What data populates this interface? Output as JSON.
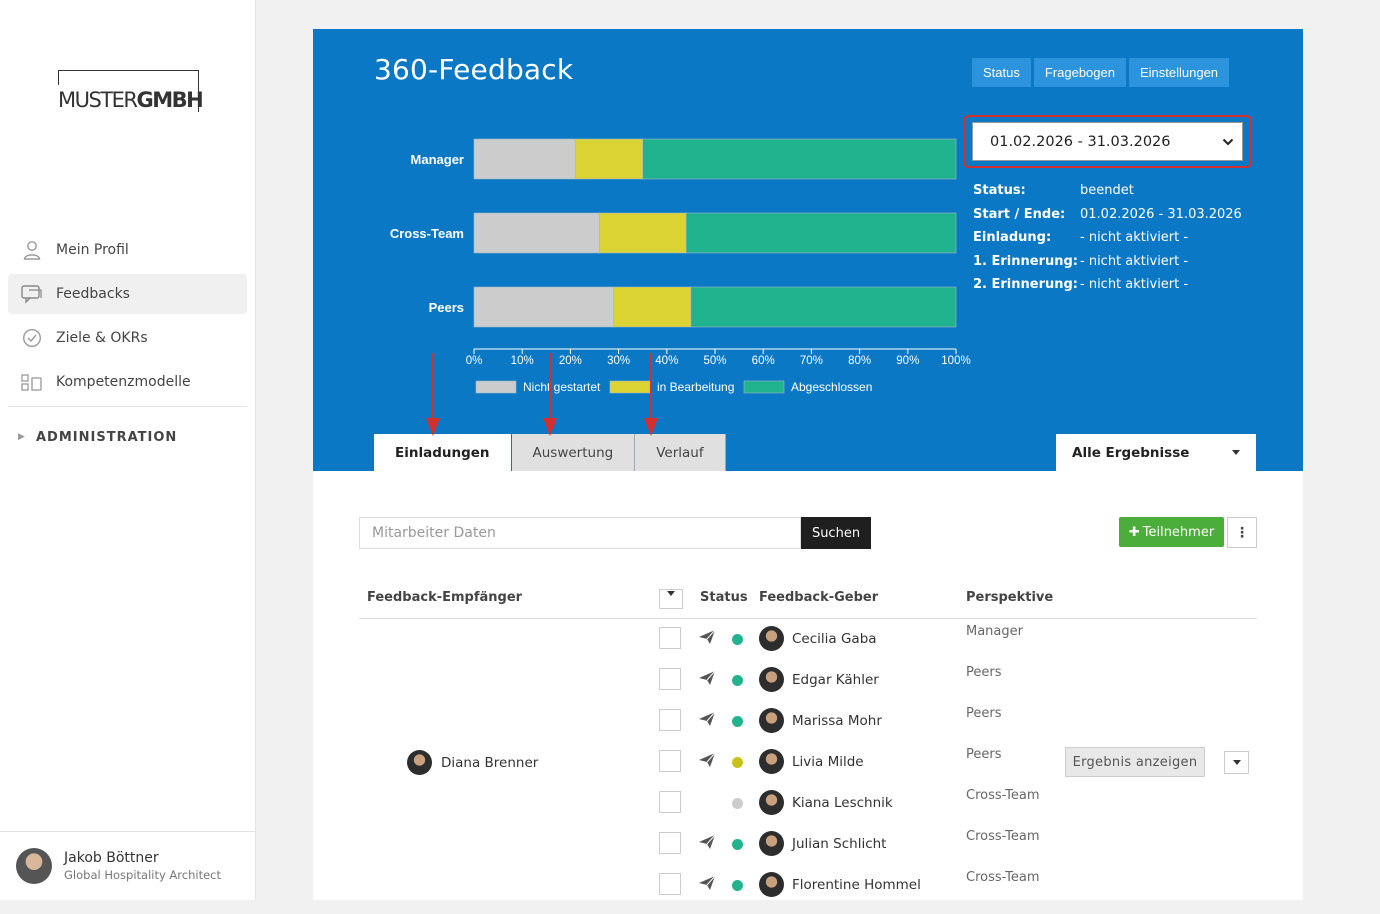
{
  "sidebar": {
    "logo": {
      "part1": "MUSTER",
      "part2": "GMBH"
    },
    "items": [
      {
        "label": "Mein Profil",
        "icon": "user-icon"
      },
      {
        "label": "Feedbacks",
        "icon": "chat-icon",
        "active": true
      },
      {
        "label": "Ziele & OKRs",
        "icon": "check-circle-icon"
      },
      {
        "label": "Kompetenzmodelle",
        "icon": "blocks-icon"
      }
    ],
    "admin_label": "ADMINISTRATION",
    "user": {
      "name": "Jakob Böttner",
      "role": "Global Hospitality Architect"
    }
  },
  "header": {
    "title": "360-Feedback",
    "buttons": [
      "Status",
      "Fragebogen",
      "Einstellungen"
    ],
    "period": "01.02.2026 - 31.03.2026",
    "info": [
      {
        "key": "Status:",
        "value": "beendet"
      },
      {
        "key": "Start / Ende:",
        "value": "01.02.2026 - 31.03.2026"
      },
      {
        "key": "Einladung:",
        "value": "- nicht aktiviert -"
      },
      {
        "key": "1. Erinnerung:",
        "value": "- nicht aktiviert -"
      },
      {
        "key": "2. Erinnerung:",
        "value": "- nicht aktiviert -"
      }
    ]
  },
  "chart_data": {
    "type": "bar",
    "orientation": "horizontal",
    "stacked": true,
    "categories": [
      "Manager",
      "Cross-Team",
      "Peers"
    ],
    "series": [
      {
        "name": "Nicht gestartet",
        "color": "#cccccc",
        "values": [
          21,
          26,
          29
        ]
      },
      {
        "name": "in Bearbeitung",
        "color": "#dcd335",
        "values": [
          14,
          18,
          16
        ]
      },
      {
        "name": "Abgeschlossen",
        "color": "#20b38d",
        "values": [
          65,
          56,
          55
        ]
      }
    ],
    "xlim": [
      0,
      100
    ],
    "x_ticks": [
      "0%",
      "10%",
      "20%",
      "30%",
      "40%",
      "50%",
      "60%",
      "70%",
      "80%",
      "90%",
      "100%"
    ],
    "legend_position": "bottom"
  },
  "tabs": [
    {
      "label": "Einladungen",
      "active": true
    },
    {
      "label": "Auswertung"
    },
    {
      "label": "Verlauf"
    }
  ],
  "filter": {
    "label": "Alle Ergebnisse"
  },
  "search": {
    "placeholder": "Mitarbeiter Daten",
    "button": "Suchen"
  },
  "actions": {
    "add": "Teilnehmer",
    "more": "⋮"
  },
  "table": {
    "headers": {
      "recipient": "Feedback-Empfänger",
      "status": "Status",
      "giver": "Feedback-Geber",
      "perspective": "Perspektive"
    },
    "recipient": "Diana Brenner",
    "result_button": "Ergebnis anzeigen",
    "rows": [
      {
        "giver": "Cecilia Gaba",
        "perspective": "Manager",
        "status": "Abgeschlossen",
        "sent": true
      },
      {
        "giver": "Edgar Kähler",
        "perspective": "Peers",
        "status": "Abgeschlossen",
        "sent": true
      },
      {
        "giver": "Marissa Mohr",
        "perspective": "Peers",
        "status": "Abgeschlossen",
        "sent": true
      },
      {
        "giver": "Livia Milde",
        "perspective": "Peers",
        "status": "in Bearbeitung",
        "sent": true
      },
      {
        "giver": "Kiana Leschnik",
        "perspective": "Cross-Team",
        "status": "Nicht gestartet",
        "sent": false
      },
      {
        "giver": "Julian Schlicht",
        "perspective": "Cross-Team",
        "status": "Abgeschlossen",
        "sent": true
      },
      {
        "giver": "Florentine Hommel",
        "perspective": "Cross-Team",
        "status": "Abgeschlossen",
        "sent": true
      }
    ]
  },
  "colors": {
    "brand": "#0a78c4",
    "green": "#20b38d",
    "yellow": "#c9c21e",
    "grey": "#cccccc",
    "add": "#4cae3a"
  }
}
